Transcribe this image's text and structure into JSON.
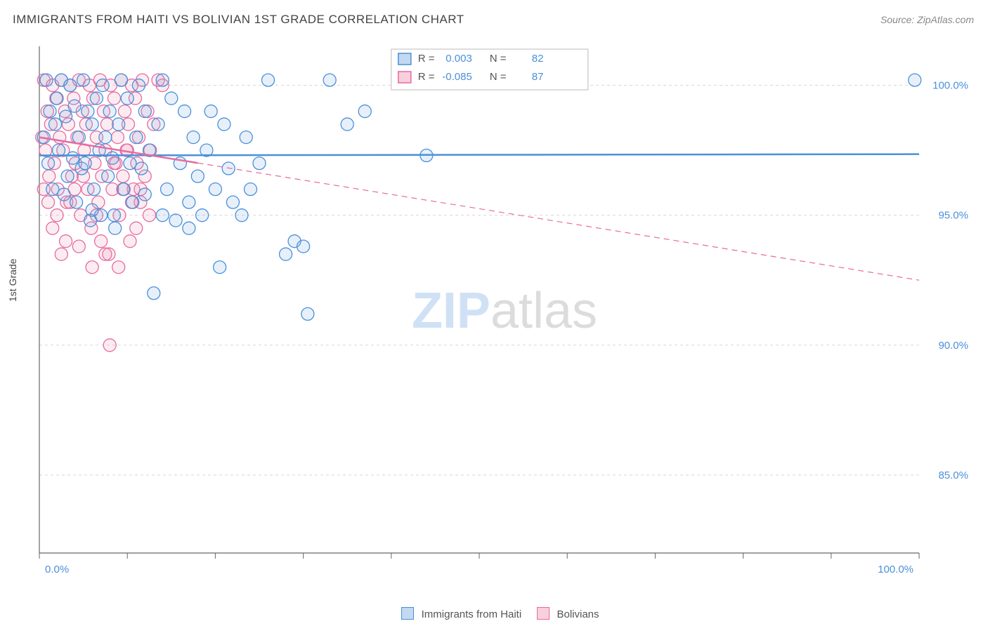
{
  "title": "IMMIGRANTS FROM HAITI VS BOLIVIAN 1ST GRADE CORRELATION CHART",
  "source": "Source: ZipAtlas.com",
  "ylabel": "1st Grade",
  "watermark_zip": "ZIP",
  "watermark_atlas": "atlas",
  "chart": {
    "type": "scatter",
    "xlim": [
      0,
      100
    ],
    "ylim": [
      82,
      101.5
    ],
    "x_ticks": [
      0,
      10,
      20,
      30,
      40,
      50,
      60,
      70,
      80,
      90,
      100
    ],
    "x_tick_labels": {
      "0": "0.0%",
      "100": "100.0%"
    },
    "y_ticks": [
      85,
      90,
      95,
      100
    ],
    "y_tick_labels": {
      "85": "85.0%",
      "90": "90.0%",
      "95": "95.0%",
      "100": "100.0%"
    },
    "grid_color": "#d8d8d8",
    "axis_color": "#666666",
    "background_color": "#ffffff",
    "marker_radius": 9,
    "marker_opacity": 0.45,
    "series": [
      {
        "name": "Immigrants from Haiti",
        "color_fill": "rgba(120,170,225,0.40)",
        "color_stroke": "#4a90d9",
        "R": 0.003,
        "N": 82,
        "trend": {
          "y_at_x0": 97.3,
          "y_at_x100": 97.35,
          "dash": false,
          "width": 2.5
        },
        "points": [
          [
            0.5,
            98.0
          ],
          [
            0.8,
            100.2
          ],
          [
            1.0,
            97.0
          ],
          [
            1.2,
            99.0
          ],
          [
            1.5,
            96.0
          ],
          [
            1.8,
            98.5
          ],
          [
            2.0,
            99.5
          ],
          [
            2.2,
            97.5
          ],
          [
            2.5,
            100.2
          ],
          [
            2.8,
            95.8
          ],
          [
            3.0,
            98.8
          ],
          [
            3.2,
            96.5
          ],
          [
            3.5,
            100.0
          ],
          [
            3.8,
            97.2
          ],
          [
            4.0,
            99.2
          ],
          [
            4.2,
            95.5
          ],
          [
            4.5,
            98.0
          ],
          [
            4.8,
            96.8
          ],
          [
            5.0,
            100.2
          ],
          [
            5.2,
            97.0
          ],
          [
            5.5,
            99.0
          ],
          [
            5.8,
            94.8
          ],
          [
            6.0,
            98.5
          ],
          [
            6.2,
            96.0
          ],
          [
            6.5,
            99.5
          ],
          [
            6.8,
            97.5
          ],
          [
            7.0,
            95.0
          ],
          [
            7.2,
            100.0
          ],
          [
            7.5,
            98.0
          ],
          [
            7.8,
            96.5
          ],
          [
            8.0,
            99.0
          ],
          [
            8.3,
            97.2
          ],
          [
            8.6,
            94.5
          ],
          [
            9.0,
            98.5
          ],
          [
            9.3,
            100.2
          ],
          [
            9.6,
            96.0
          ],
          [
            10.0,
            99.5
          ],
          [
            10.3,
            97.0
          ],
          [
            10.6,
            95.5
          ],
          [
            11.0,
            98.0
          ],
          [
            11.3,
            100.0
          ],
          [
            11.6,
            96.8
          ],
          [
            12.0,
            99.0
          ],
          [
            12.5,
            97.5
          ],
          [
            13.0,
            92.0
          ],
          [
            13.5,
            98.5
          ],
          [
            14.0,
            100.2
          ],
          [
            14.5,
            96.0
          ],
          [
            15.0,
            99.5
          ],
          [
            15.5,
            94.8
          ],
          [
            16.0,
            97.0
          ],
          [
            16.5,
            99.0
          ],
          [
            17.0,
            95.5
          ],
          [
            17.5,
            98.0
          ],
          [
            18.0,
            96.5
          ],
          [
            18.5,
            95.0
          ],
          [
            19.0,
            97.5
          ],
          [
            19.5,
            99.0
          ],
          [
            20.0,
            96.0
          ],
          [
            20.5,
            93.0
          ],
          [
            21.0,
            98.5
          ],
          [
            22.0,
            95.5
          ],
          [
            23.0,
            95.0
          ],
          [
            24.0,
            96.0
          ],
          [
            26.0,
            100.2
          ],
          [
            28.0,
            93.5
          ],
          [
            29.0,
            94.0
          ],
          [
            30.0,
            93.8
          ],
          [
            30.5,
            91.2
          ],
          [
            33.0,
            100.2
          ],
          [
            35.0,
            98.5
          ],
          [
            37.0,
            99.0
          ],
          [
            44.0,
            97.3
          ],
          [
            99.5,
            100.2
          ],
          [
            6.0,
            95.2
          ],
          [
            8.5,
            95.0
          ],
          [
            12.0,
            95.8
          ],
          [
            14.0,
            95.0
          ],
          [
            17.0,
            94.5
          ],
          [
            21.5,
            96.8
          ],
          [
            23.5,
            98.0
          ],
          [
            25.0,
            97.0
          ]
        ]
      },
      {
        "name": "Bolivians",
        "color_fill": "rgba(240,150,180,0.40)",
        "color_stroke": "#e66ba0",
        "R": -0.085,
        "N": 87,
        "trend": {
          "y_at_x0": 98.0,
          "y_at_x100": 92.5,
          "dash_after_x": 18,
          "solid_width": 2.5,
          "dash_width": 1.2
        },
        "points": [
          [
            0.3,
            98.0
          ],
          [
            0.5,
            100.2
          ],
          [
            0.7,
            97.5
          ],
          [
            0.9,
            99.0
          ],
          [
            1.1,
            96.5
          ],
          [
            1.3,
            98.5
          ],
          [
            1.5,
            100.0
          ],
          [
            1.7,
            97.0
          ],
          [
            1.9,
            99.5
          ],
          [
            2.1,
            96.0
          ],
          [
            2.3,
            98.0
          ],
          [
            2.5,
            100.2
          ],
          [
            2.7,
            97.5
          ],
          [
            2.9,
            99.0
          ],
          [
            3.1,
            95.5
          ],
          [
            3.3,
            98.5
          ],
          [
            3.5,
            100.0
          ],
          [
            3.7,
            96.5
          ],
          [
            3.9,
            99.5
          ],
          [
            4.1,
            97.0
          ],
          [
            4.3,
            98.0
          ],
          [
            4.5,
            100.2
          ],
          [
            4.7,
            95.0
          ],
          [
            4.9,
            99.0
          ],
          [
            5.1,
            97.5
          ],
          [
            5.3,
            98.5
          ],
          [
            5.5,
            96.0
          ],
          [
            5.7,
            100.0
          ],
          [
            5.9,
            94.5
          ],
          [
            6.1,
            99.5
          ],
          [
            6.3,
            97.0
          ],
          [
            6.5,
            98.0
          ],
          [
            6.7,
            95.5
          ],
          [
            6.9,
            100.2
          ],
          [
            7.1,
            96.5
          ],
          [
            7.3,
            99.0
          ],
          [
            7.5,
            97.5
          ],
          [
            7.7,
            98.5
          ],
          [
            7.9,
            93.5
          ],
          [
            8.1,
            100.0
          ],
          [
            8.3,
            96.0
          ],
          [
            8.5,
            99.5
          ],
          [
            8.7,
            97.0
          ],
          [
            8.9,
            98.0
          ],
          [
            9.1,
            95.0
          ],
          [
            9.3,
            100.2
          ],
          [
            9.5,
            96.5
          ],
          [
            9.7,
            99.0
          ],
          [
            9.9,
            97.5
          ],
          [
            10.1,
            98.5
          ],
          [
            10.3,
            94.0
          ],
          [
            10.5,
            100.0
          ],
          [
            10.7,
            96.0
          ],
          [
            10.9,
            99.5
          ],
          [
            11.1,
            97.0
          ],
          [
            11.3,
            98.0
          ],
          [
            11.5,
            95.5
          ],
          [
            11.7,
            100.2
          ],
          [
            12.0,
            96.5
          ],
          [
            12.3,
            99.0
          ],
          [
            12.6,
            97.5
          ],
          [
            13.0,
            98.5
          ],
          [
            13.5,
            100.2
          ],
          [
            14.0,
            100.0
          ],
          [
            7.5,
            93.5
          ],
          [
            9.0,
            93.0
          ],
          [
            10.5,
            95.5
          ],
          [
            8.0,
            90.0
          ],
          [
            3.0,
            94.0
          ],
          [
            4.5,
            93.8
          ],
          [
            6.0,
            93.0
          ],
          [
            2.0,
            95.0
          ],
          [
            1.0,
            95.5
          ],
          [
            0.5,
            96.0
          ],
          [
            11.0,
            94.5
          ],
          [
            12.5,
            95.0
          ],
          [
            5.0,
            96.5
          ],
          [
            6.5,
            95.0
          ],
          [
            9.5,
            96.0
          ],
          [
            2.5,
            93.5
          ],
          [
            4.0,
            96.0
          ],
          [
            1.5,
            94.5
          ],
          [
            3.5,
            95.5
          ],
          [
            7.0,
            94.0
          ],
          [
            8.5,
            97.0
          ],
          [
            10.0,
            97.5
          ],
          [
            11.5,
            96.0
          ]
        ]
      }
    ]
  },
  "legend_inside": {
    "R_label": "R",
    "N_label": "N",
    "eq": "="
  },
  "bottom_legend": {
    "series1": "Immigrants from Haiti",
    "series2": "Bolivians"
  }
}
